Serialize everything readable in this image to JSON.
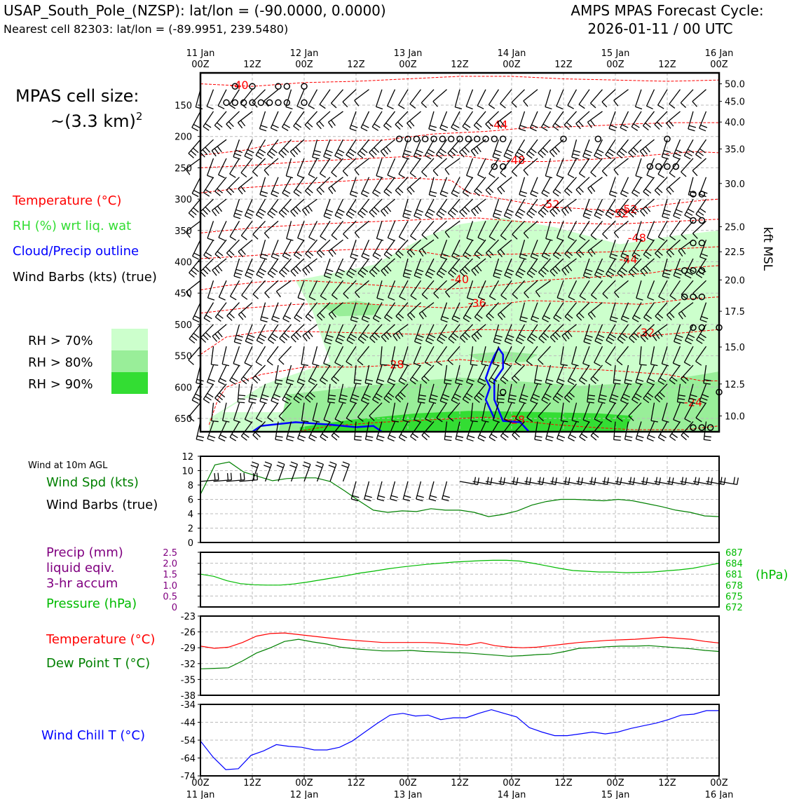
{
  "header": {
    "station": "USAP_South_Pole_(NZSP): lat/lon = (-90.0000, 0.0000)",
    "nearest_cell": "Nearest cell 82303: lat/lon = (-89.9951, 239.5480)",
    "cycle_line1": "AMPS MPAS Forecast Cycle:",
    "cycle_line2": "2026-01-11 / 00 UTC"
  },
  "legend": {
    "cell_size_line1": "MPAS cell size:",
    "cell_size_line2": "~(3.3 km)",
    "cell_size_sup": "2",
    "temperature": "Temperature (°C)",
    "rh": "RH (%) wrt liq. wat",
    "cloud": "Cloud/Precip outline",
    "wind_barbs": "Wind Barbs (kts) (true)",
    "rh_70": "RH > 70%",
    "rh_80": "RH > 80%",
    "rh_90": "RH > 90%"
  },
  "colors": {
    "temperature": "#ff0000",
    "rh_label": "#33dd33",
    "cloud": "#0000ff",
    "rh70": "#ccffcc",
    "rh80": "#99ee99",
    "rh90": "#33dd33",
    "wind_speed": "#008000",
    "dewpoint": "#008000",
    "precip": "#800080",
    "pressure": "#00bb00",
    "wind_chill": "#0000ff"
  },
  "chart_data": [
    {
      "type": "line",
      "id": "profile",
      "title": "",
      "time_top_labels": [
        {
          "day": "11 Jan",
          "hour": "00Z"
        },
        {
          "day": "",
          "hour": "12Z"
        },
        {
          "day": "12 Jan",
          "hour": "00Z"
        },
        {
          "day": "",
          "hour": "12Z"
        },
        {
          "day": "13 Jan",
          "hour": "00Z"
        },
        {
          "day": "",
          "hour": "12Z"
        },
        {
          "day": "14 Jan",
          "hour": "00Z"
        },
        {
          "day": "",
          "hour": "12Z"
        },
        {
          "day": "15 Jan",
          "hour": "00Z"
        },
        {
          "day": "",
          "hour": "12Z"
        },
        {
          "day": "16 Jan",
          "hour": "00Z"
        }
      ],
      "x_range_hours": [
        0,
        120
      ],
      "pressure_ticks": [
        "150",
        "200",
        "250",
        "300",
        "350",
        "400",
        "450",
        "500",
        "550",
        "600",
        "650"
      ],
      "kft_ticks": [
        "50.0",
        "45.0",
        "40.0",
        "35.0",
        "30.0",
        "25.0",
        "22.5",
        "20.0",
        "17.5",
        "15.0",
        "12.5",
        "10.0"
      ],
      "right_label": "kft MSL",
      "temperature_contour_labels": [
        {
          "t": 9,
          "p": 122,
          "label": "-40"
        },
        {
          "t": 69,
          "p": 185,
          "label": "-44"
        },
        {
          "t": 73,
          "p": 242,
          "label": "-48"
        },
        {
          "t": 81,
          "p": 312,
          "label": "-52"
        },
        {
          "t": 99,
          "p": 320,
          "label": "-52"
        },
        {
          "t": 97,
          "p": 327,
          "label": "-52"
        },
        {
          "t": 101,
          "p": 366,
          "label": "-48"
        },
        {
          "t": 99,
          "p": 400,
          "label": "-44"
        },
        {
          "t": 60,
          "p": 432,
          "label": "-40"
        },
        {
          "t": 64,
          "p": 470,
          "label": "-36"
        },
        {
          "t": 103,
          "p": 517,
          "label": "-32"
        },
        {
          "t": 45,
          "p": 568,
          "label": "-28"
        },
        {
          "t": 114,
          "p": 628,
          "label": "-24"
        },
        {
          "t": 73,
          "p": 656,
          "label": "-28"
        }
      ]
    },
    {
      "type": "line",
      "id": "wind10m",
      "title": "Wind at 10m AGL",
      "series": [
        {
          "name": "Wind Spd (kts)",
          "values": [
            6.7,
            10.8,
            11.2,
            9.8,
            9.2,
            8.6,
            8.9,
            9.0,
            9.0,
            8.5,
            7.2,
            5.8,
            4.5,
            4.2,
            4.4,
            4.3,
            4.7,
            4.5,
            4.5,
            4.2,
            3.6,
            3.9,
            4.4,
            5.2,
            5.7,
            6.0,
            6.0,
            5.9,
            5.8,
            6.0,
            5.8,
            5.4,
            5.0,
            4.5,
            4.2,
            3.7,
            3.6
          ]
        },
        {
          "name": "Wind Barbs (true)",
          "values": []
        }
      ],
      "ylim": [
        0,
        12
      ],
      "yticks": [
        "0",
        "2",
        "4",
        "6",
        "8",
        "10",
        "12"
      ],
      "label_speed": "Wind Spd (kts)",
      "label_barbs": "Wind Barbs (true)"
    },
    {
      "type": "line",
      "id": "precip_pressure",
      "series": [
        {
          "name": "Pressure (hPa)",
          "values": [
            681.0,
            680.4,
            679.2,
            678.4,
            678.1,
            678.0,
            678.0,
            678.3,
            678.8,
            679.4,
            680.0,
            680.6,
            681.3,
            681.8,
            682.4,
            682.9,
            683.3,
            683.7,
            684.0,
            684.3,
            684.5,
            684.7,
            684.8,
            684.8,
            684.6,
            684.0,
            683.3,
            682.6,
            682.0,
            681.8,
            681.6,
            681.6,
            681.4,
            681.5,
            681.6,
            681.9,
            682.2,
            682.6,
            683.3,
            684.0
          ]
        }
      ],
      "ylim_left": [
        0,
        2.5
      ],
      "yticks_left": [
        "0",
        "0.5",
        "1.0",
        "1.5",
        "2.0",
        "2.5"
      ],
      "ylim_right": [
        672,
        687
      ],
      "yticks_right": [
        "672",
        "675",
        "678",
        "681",
        "684",
        "687"
      ],
      "label_precip_1": "Precip (mm)",
      "label_precip_2": "liquid eqiv.",
      "label_precip_3": "3-hr accum",
      "label_pressure": "Pressure (hPa)",
      "right_unit": "(hPa)"
    },
    {
      "type": "line",
      "id": "temperature",
      "series": [
        {
          "name": "Temperature (°C)",
          "values": [
            -28.7,
            -29.1,
            -28.9,
            -28.0,
            -26.8,
            -26.3,
            -26.2,
            -26.5,
            -26.8,
            -27.1,
            -27.4,
            -27.6,
            -27.8,
            -28.0,
            -28.0,
            -28.0,
            -28.0,
            -28.1,
            -28.3,
            -28.5,
            -28.0,
            -28.6,
            -28.9,
            -29.0,
            -28.9,
            -28.6,
            -28.3,
            -28.0,
            -27.8,
            -27.6,
            -27.5,
            -27.4,
            -27.2,
            -27.0,
            -27.2,
            -27.4,
            -27.8,
            -28.1
          ]
        },
        {
          "name": "Dew Point T (°C)",
          "values": [
            -33.0,
            -32.9,
            -32.8,
            -31.5,
            -30.0,
            -29.0,
            -27.8,
            -27.4,
            -27.9,
            -28.3,
            -28.9,
            -29.2,
            -29.4,
            -29.6,
            -29.6,
            -29.5,
            -29.7,
            -29.8,
            -29.9,
            -30.0,
            -30.2,
            -30.4,
            -30.6,
            -30.5,
            -30.3,
            -30.2,
            -29.7,
            -29.1,
            -29.0,
            -28.8,
            -28.7,
            -28.7,
            -28.6,
            -28.8,
            -29.0,
            -29.2,
            -29.5,
            -29.7
          ]
        }
      ],
      "ylim": [
        -38,
        -23
      ],
      "yticks": [
        "-38",
        "-35",
        "-32",
        "-29",
        "-26",
        "-23"
      ],
      "label_temp": "Temperature (°C)",
      "label_dew": "Dew Point T (°C)"
    },
    {
      "type": "line",
      "id": "windchill",
      "series": [
        {
          "name": "Wind Chill T (°C)",
          "values": [
            -54.5,
            -63.5,
            -70.5,
            -70.0,
            -62.5,
            -60.0,
            -56.5,
            -57.5,
            -58.0,
            -59.5,
            -59.5,
            -58.0,
            -54.5,
            -49.5,
            -44.5,
            -40.0,
            -39.0,
            -40.5,
            -40.0,
            -42.5,
            -41.5,
            -41.5,
            -39.0,
            -37.0,
            -39.0,
            -41.0,
            -47.0,
            -49.5,
            -51.5,
            -51.5,
            -50.5,
            -49.5,
            -50.5,
            -49.5,
            -47.5,
            -46.0,
            -44.5,
            -42.5,
            -40.0,
            -39.5,
            -37.5,
            -37.5
          ]
        }
      ],
      "ylim": [
        -74,
        -34
      ],
      "yticks": [
        "-74",
        "-64",
        "-54",
        "-44",
        "-34"
      ],
      "label": "Wind Chill T (°C)"
    },
    {
      "type": "line",
      "id": "bottom_time_axis",
      "time_bottom_labels": [
        {
          "hour": "00Z",
          "day": "11 Jan"
        },
        {
          "hour": "12Z",
          "day": ""
        },
        {
          "hour": "00Z",
          "day": "12 Jan"
        },
        {
          "hour": "12Z",
          "day": ""
        },
        {
          "hour": "00Z",
          "day": "13 Jan"
        },
        {
          "hour": "12Z",
          "day": ""
        },
        {
          "hour": "00Z",
          "day": "14 Jan"
        },
        {
          "hour": "12Z",
          "day": ""
        },
        {
          "hour": "00Z",
          "day": "15 Jan"
        },
        {
          "hour": "12Z",
          "day": ""
        },
        {
          "hour": "00Z",
          "day": "16 Jan"
        }
      ]
    }
  ]
}
